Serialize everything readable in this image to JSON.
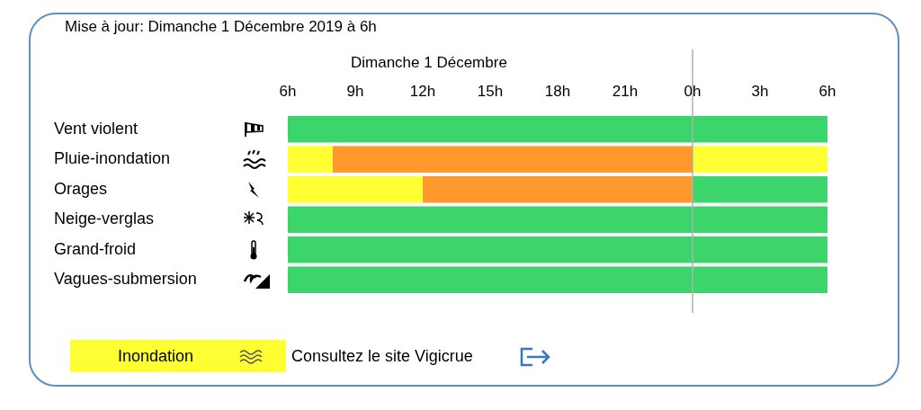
{
  "header": "Mise à jour: Dimanche 1 Décembre 2019 à 6h",
  "chart_data": {
    "type": "timeline",
    "title": "Dimanche 1 Décembre",
    "orientation": "horizontal",
    "grid": false,
    "categories": [
      "Vent violent",
      "Pluie-inondation",
      "Orages",
      "Neige-verglas",
      "Grand-froid",
      "Vagues-submersion"
    ],
    "segments": [
      [
        {
          "start": 6,
          "end": 30,
          "color": "#3cd56c"
        }
      ],
      [
        {
          "start": 6,
          "end": 8,
          "color": "#ffff33"
        },
        {
          "start": 8,
          "end": 24,
          "color": "#ff992c"
        },
        {
          "start": 24,
          "end": 30,
          "color": "#ffff33"
        }
      ],
      [
        {
          "start": 6,
          "end": 12,
          "color": "#ffff33"
        },
        {
          "start": 12,
          "end": 24,
          "color": "#ff992c"
        },
        {
          "start": 24,
          "end": 30,
          "color": "#3cd56c"
        }
      ],
      [
        {
          "start": 6,
          "end": 30,
          "color": "#3cd56c"
        }
      ],
      [
        {
          "start": 6,
          "end": 30,
          "color": "#3cd56c"
        }
      ],
      [
        {
          "start": 6,
          "end": 30,
          "color": "#3cd56c"
        }
      ]
    ],
    "xlim": [
      6,
      30
    ],
    "xticks": [
      {
        "value": 6,
        "label": "6h"
      },
      {
        "value": 9,
        "label": "9h"
      },
      {
        "value": 12,
        "label": "12h"
      },
      {
        "value": 15,
        "label": "15h"
      },
      {
        "value": 18,
        "label": "18h"
      },
      {
        "value": 21,
        "label": "21h"
      },
      {
        "value": 24,
        "label": "0h"
      },
      {
        "value": 27,
        "label": "3h"
      },
      {
        "value": 30,
        "label": "6h"
      }
    ],
    "divider": 24
  },
  "footer": {
    "label": "Inondation",
    "color": "#ffff33",
    "link_text": "Consultez le site Vigicrue"
  }
}
